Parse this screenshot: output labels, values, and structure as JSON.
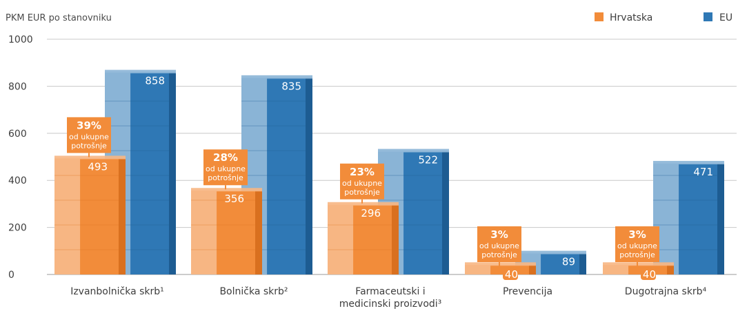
{
  "chart_data": {
    "type": "bar",
    "ylabel": "PKM EUR po stanovniku",
    "ylim": [
      0,
      1000
    ],
    "yticks": [
      "0",
      "200",
      "400",
      "600",
      "800",
      "1000"
    ],
    "categories": [
      [
        "Izvanbolnička skrb¹"
      ],
      [
        "Bolnička skrb²"
      ],
      [
        "Farmaceutski i",
        "medicinski proizvodi³"
      ],
      [
        "Prevencija"
      ],
      [
        "Dugotrajna skrb⁴"
      ]
    ],
    "series": [
      {
        "name": "Hrvatska",
        "values": [
          493,
          356,
          296,
          40,
          40
        ],
        "labels": [
          "493",
          "356",
          "296",
          "40",
          "40"
        ],
        "color": "#f28c3a"
      },
      {
        "name": "EU",
        "values": [
          858,
          835,
          522,
          89,
          471
        ],
        "labels": [
          "858",
          "835",
          "522",
          "89",
          "471"
        ],
        "color": "#2f78b5"
      }
    ],
    "share_callouts": [
      {
        "pct": "39%",
        "line1": "od ukupne",
        "line2": "potrošnje"
      },
      {
        "pct": "28%",
        "line1": "od ukupne",
        "line2": "potrošnje"
      },
      {
        "pct": "23%",
        "line1": "od ukupne",
        "line2": "potrošnje"
      },
      {
        "pct": "3%",
        "line1": "od ukupne",
        "line2": "potrošnje"
      },
      {
        "pct": "3%",
        "line1": "od ukupne",
        "line2": "potrošnje"
      }
    ],
    "grid": true,
    "legend": "top-right"
  }
}
